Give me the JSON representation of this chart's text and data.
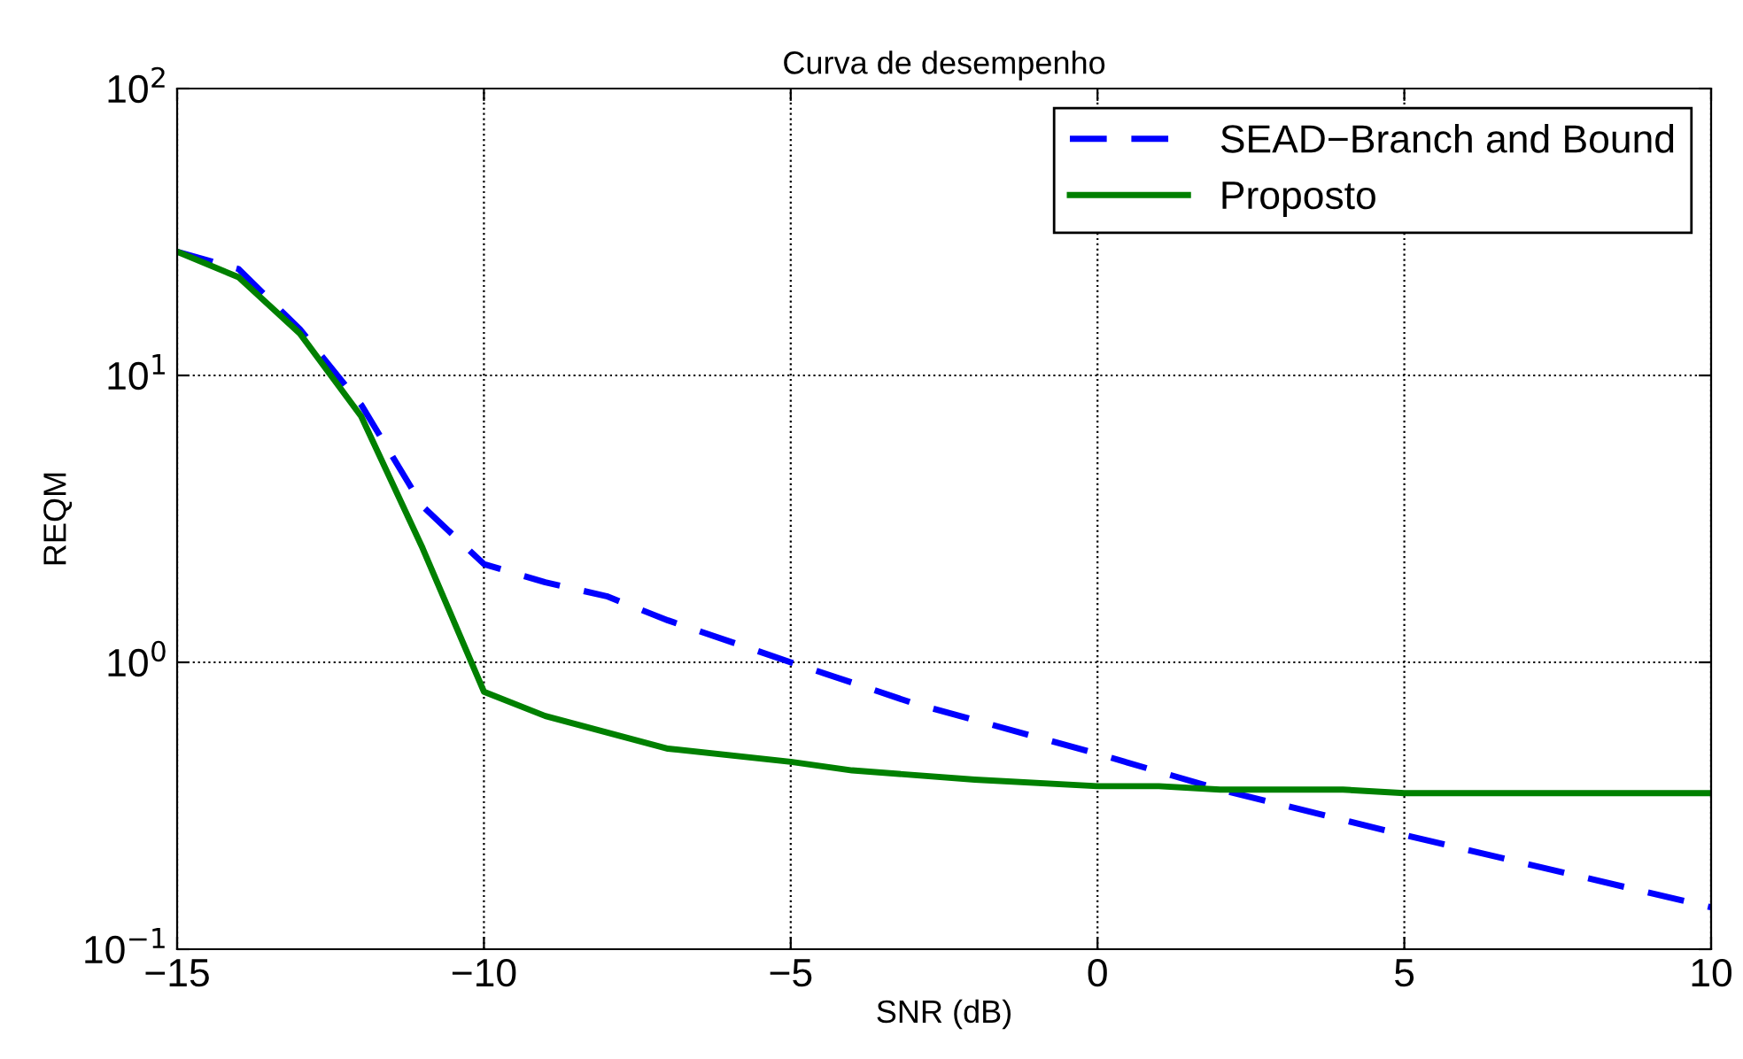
{
  "chart_data": {
    "type": "line",
    "title": "Curva de desempenho",
    "xlabel": "SNR (dB)",
    "ylabel": "REQM",
    "log": "y",
    "grid": true,
    "legend": "top right",
    "xlim": [
      -15,
      10
    ],
    "xticks": [
      -15,
      -10,
      -5,
      0,
      5,
      10
    ],
    "ylim": [
      0.1,
      100
    ],
    "yticks": [
      {
        "value": 0.1,
        "label": "10$^{−1}$"
      },
      {
        "value": 1,
        "label": "10$^{0}$"
      },
      {
        "value": 10,
        "label": "10$^{1}$"
      },
      {
        "value": 100,
        "label": "10$^{2}$"
      }
    ],
    "series": [
      {
        "name": "SEAD−Branch and Bound",
        "color": "#0000ff",
        "line_style": "dashed",
        "x": [
          -15,
          -14,
          -13,
          -12,
          -11,
          -10,
          -9,
          -8,
          -7,
          -5,
          -4,
          -3,
          0,
          2,
          5,
          10
        ],
        "values": [
          27,
          23.5,
          14.5,
          7.9,
          3.5,
          2.2,
          1.9,
          1.7,
          1.4,
          1.0,
          0.85,
          0.72,
          0.48,
          0.36,
          0.25,
          0.14
        ]
      },
      {
        "name": "Proposto",
        "color": "#008000",
        "line_style": "solid",
        "x": [
          -15,
          -14,
          -13,
          -12,
          -11,
          -10,
          -9,
          -8,
          -7,
          -5,
          -4,
          -2,
          0,
          1,
          2,
          4,
          5,
          10
        ],
        "values": [
          27,
          22,
          14,
          7.2,
          2.5,
          0.79,
          0.65,
          0.57,
          0.5,
          0.45,
          0.42,
          0.39,
          0.37,
          0.37,
          0.36,
          0.36,
          0.35,
          0.35
        ]
      }
    ]
  }
}
